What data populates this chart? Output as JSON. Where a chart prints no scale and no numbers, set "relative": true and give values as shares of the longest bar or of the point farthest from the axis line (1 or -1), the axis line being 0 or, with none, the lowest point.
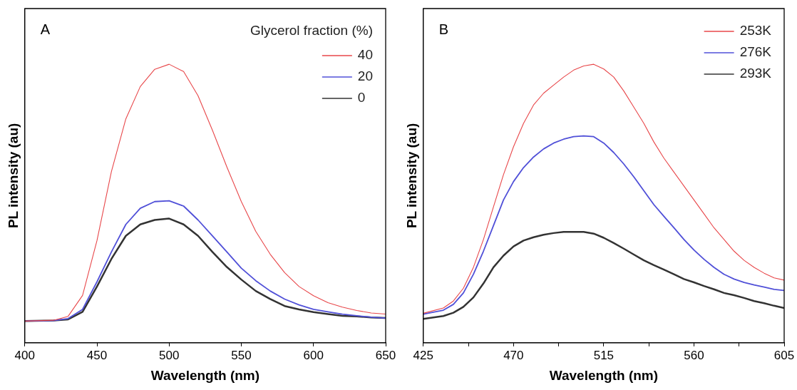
{
  "chart_data": [
    {
      "type": "line",
      "xlabel": "Wavelength (nm)",
      "ylabel": "PL intensity (au)",
      "legend_title": "Glycerol fraction (%)",
      "legend": "top right",
      "relative": true,
      "annotations": [
        "A"
      ],
      "xlim": [
        400,
        650
      ],
      "xticks": [
        400,
        450,
        500,
        550,
        600,
        650
      ],
      "grid": false,
      "marker": "none",
      "x": [
        400,
        420,
        430,
        440,
        450,
        460,
        470,
        480,
        490,
        500,
        510,
        520,
        530,
        540,
        550,
        560,
        570,
        580,
        590,
        600,
        610,
        620,
        630,
        640,
        650
      ],
      "series": [
        {
          "name": "40",
          "color": "#e8474a",
          "values": [
            0.078,
            0.081,
            0.095,
            0.17,
            0.367,
            0.615,
            0.804,
            0.92,
            0.982,
            1,
            0.974,
            0.887,
            0.763,
            0.631,
            0.507,
            0.4,
            0.318,
            0.252,
            0.202,
            0.169,
            0.144,
            0.128,
            0.116,
            0.107,
            0.103
          ]
        },
        {
          "name": "20",
          "color": "#5050d8",
          "values": [
            0.078,
            0.08,
            0.087,
            0.12,
            0.219,
            0.326,
            0.425,
            0.483,
            0.507,
            0.51,
            0.491,
            0.441,
            0.384,
            0.326,
            0.268,
            0.223,
            0.186,
            0.157,
            0.136,
            0.12,
            0.111,
            0.103,
            0.097,
            0.092,
            0.089
          ]
        },
        {
          "name": "0",
          "color": "#333333",
          "values": [
            0.078,
            0.08,
            0.084,
            0.111,
            0.202,
            0.301,
            0.384,
            0.425,
            0.441,
            0.446,
            0.425,
            0.384,
            0.326,
            0.272,
            0.227,
            0.186,
            0.157,
            0.132,
            0.12,
            0.11,
            0.103,
            0.097,
            0.095,
            0.091,
            0.089
          ]
        }
      ]
    },
    {
      "type": "line",
      "xlabel": "Wavelength (nm)",
      "ylabel": "PL intensity (au)",
      "legend": "top right",
      "relative": true,
      "annotations": [
        "B"
      ],
      "xlim": [
        425,
        605
      ],
      "xticks": [
        425,
        {
          "value": 447.5,
          "label": null
        },
        470,
        {
          "value": 492.5,
          "label": null
        },
        515,
        {
          "value": 537.5,
          "label": null
        },
        560,
        {
          "value": 582.5,
          "label": null
        },
        605
      ],
      "grid": false,
      "marker": "none",
      "x": [
        425,
        435,
        440,
        445,
        450,
        455,
        460,
        465,
        470,
        475,
        480,
        485,
        490,
        495,
        500,
        505,
        510,
        515,
        520,
        525,
        530,
        535,
        540,
        545,
        550,
        555,
        560,
        565,
        570,
        575,
        580,
        585,
        590,
        595,
        600,
        605
      ],
      "series": [
        {
          "name": "253K",
          "color": "#e8474a",
          "values": [
            0.106,
            0.125,
            0.15,
            0.196,
            0.271,
            0.371,
            0.488,
            0.604,
            0.704,
            0.788,
            0.854,
            0.896,
            0.925,
            0.954,
            0.979,
            0.994,
            1,
            0.983,
            0.954,
            0.904,
            0.846,
            0.788,
            0.721,
            0.663,
            0.613,
            0.563,
            0.513,
            0.463,
            0.413,
            0.371,
            0.329,
            0.296,
            0.271,
            0.25,
            0.233,
            0.225
          ]
        },
        {
          "name": "276K",
          "color": "#5050d8",
          "values": [
            0.103,
            0.117,
            0.138,
            0.179,
            0.246,
            0.329,
            0.421,
            0.513,
            0.579,
            0.629,
            0.667,
            0.696,
            0.717,
            0.731,
            0.74,
            0.743,
            0.74,
            0.717,
            0.683,
            0.642,
            0.596,
            0.546,
            0.496,
            0.454,
            0.413,
            0.371,
            0.333,
            0.3,
            0.271,
            0.246,
            0.229,
            0.217,
            0.208,
            0.2,
            0.192,
            0.188
          ]
        },
        {
          "name": "293K",
          "color": "#333333",
          "values": [
            0.086,
            0.096,
            0.108,
            0.129,
            0.163,
            0.213,
            0.271,
            0.313,
            0.346,
            0.367,
            0.379,
            0.388,
            0.394,
            0.398,
            0.398,
            0.398,
            0.392,
            0.377,
            0.358,
            0.338,
            0.317,
            0.296,
            0.279,
            0.263,
            0.246,
            0.229,
            0.217,
            0.204,
            0.192,
            0.179,
            0.171,
            0.161,
            0.15,
            0.142,
            0.133,
            0.125
          ]
        }
      ]
    }
  ]
}
